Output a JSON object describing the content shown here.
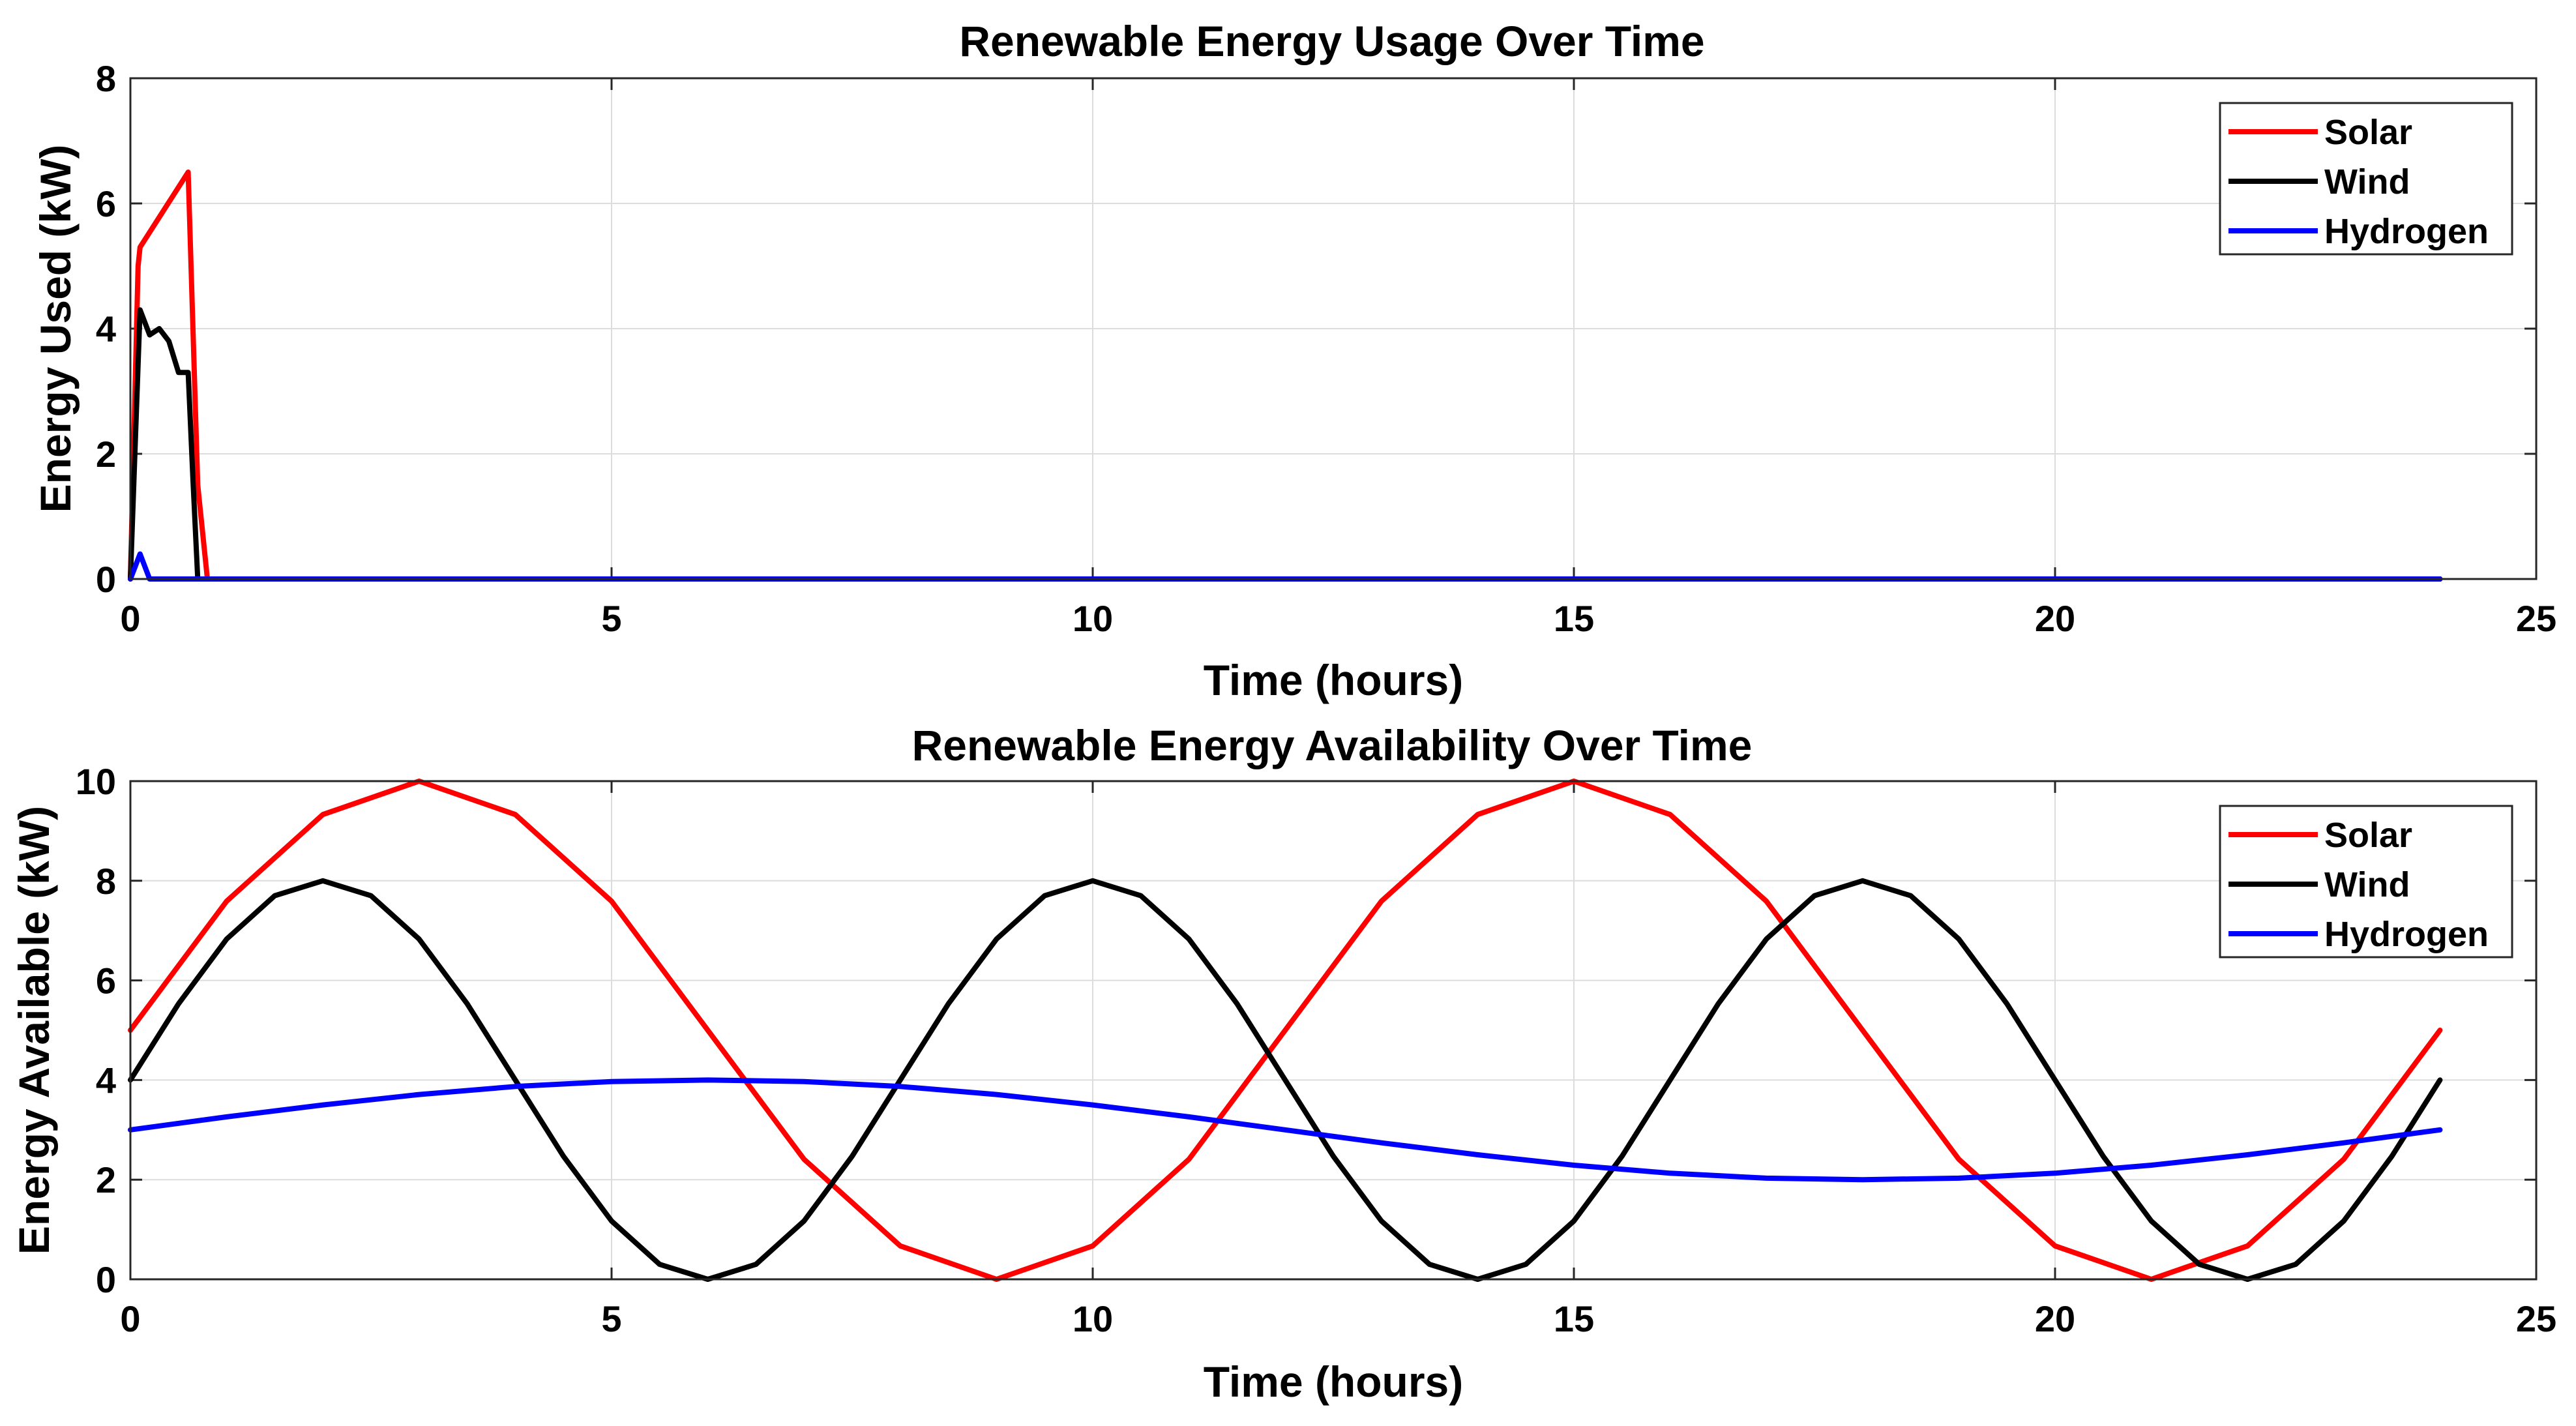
{
  "chart_data": [
    {
      "type": "line",
      "title": "Renewable Energy Usage Over Time",
      "xlabel": "Time (hours)",
      "ylabel": "Energy Used (kW)",
      "xlim": [
        0,
        25
      ],
      "ylim": [
        0,
        8
      ],
      "xticks": [
        0,
        5,
        10,
        15,
        20,
        25
      ],
      "yticks": [
        0,
        2,
        4,
        6,
        8
      ],
      "grid": true,
      "legend": "top-right",
      "series": [
        {
          "name": "Solar",
          "color": "#ff0000",
          "points": [
            [
              0,
              0
            ],
            [
              0.08,
              5.0
            ],
            [
              0.1,
              5.3
            ],
            [
              0.6,
              6.5
            ],
            [
              0.7,
              1.5
            ],
            [
              0.8,
              0
            ],
            [
              24,
              0
            ]
          ]
        },
        {
          "name": "Wind",
          "color": "#000000",
          "points": [
            [
              0,
              0
            ],
            [
              0.1,
              4.3
            ],
            [
              0.2,
              3.9
            ],
            [
              0.3,
              4.0
            ],
            [
              0.4,
              3.8
            ],
            [
              0.5,
              3.3
            ],
            [
              0.6,
              3.3
            ],
            [
              0.65,
              1.6
            ],
            [
              0.7,
              0
            ],
            [
              24,
              0
            ]
          ]
        },
        {
          "name": "Hydrogen",
          "color": "#0000ff",
          "points": [
            [
              0,
              0
            ],
            [
              0.1,
              0.4
            ],
            [
              0.2,
              0
            ],
            [
              24,
              0
            ]
          ]
        }
      ]
    },
    {
      "type": "line",
      "title": "Renewable Energy Availability Over Time",
      "xlabel": "Time (hours)",
      "ylabel": "Energy Available (kW)",
      "xlim": [
        0,
        25
      ],
      "ylim": [
        0,
        10
      ],
      "xticks": [
        0,
        5,
        10,
        15,
        20,
        25
      ],
      "yticks": [
        0,
        2,
        4,
        6,
        8,
        10
      ],
      "grid": true,
      "legend": "top-right",
      "series": [
        {
          "name": "Solar",
          "color": "#ff0000",
          "points": [
            [
              0,
              5.0
            ],
            [
              1,
              7.59
            ],
            [
              2,
              9.33
            ],
            [
              3,
              10.0
            ],
            [
              4,
              9.33
            ],
            [
              5,
              7.59
            ],
            [
              6,
              5.0
            ],
            [
              7,
              2.41
            ],
            [
              8,
              0.67
            ],
            [
              9,
              0.0
            ],
            [
              10,
              0.67
            ],
            [
              11,
              2.41
            ],
            [
              12,
              5.0
            ],
            [
              13,
              7.59
            ],
            [
              14,
              9.33
            ],
            [
              15,
              10.0
            ],
            [
              16,
              9.33
            ],
            [
              17,
              7.59
            ],
            [
              18,
              5.0
            ],
            [
              19,
              2.41
            ],
            [
              20,
              0.67
            ],
            [
              21,
              0.0
            ],
            [
              22,
              0.67
            ],
            [
              23,
              2.41
            ],
            [
              24,
              5.0
            ]
          ]
        },
        {
          "name": "Wind",
          "color": "#000000",
          "points": [
            [
              0,
              4.0
            ],
            [
              0.5,
              5.53
            ],
            [
              1,
              6.83
            ],
            [
              1.5,
              7.7
            ],
            [
              2,
              8.0
            ],
            [
              2.5,
              7.7
            ],
            [
              3,
              6.83
            ],
            [
              3.5,
              5.53
            ],
            [
              4,
              4.0
            ],
            [
              4.5,
              2.47
            ],
            [
              5,
              1.17
            ],
            [
              5.5,
              0.3
            ],
            [
              6,
              0.0
            ],
            [
              6.5,
              0.3
            ],
            [
              7,
              1.17
            ],
            [
              7.5,
              2.47
            ],
            [
              8,
              4.0
            ],
            [
              8.5,
              5.53
            ],
            [
              9,
              6.83
            ],
            [
              9.5,
              7.7
            ],
            [
              10,
              8.0
            ],
            [
              10.5,
              7.7
            ],
            [
              11,
              6.83
            ],
            [
              11.5,
              5.53
            ],
            [
              12,
              4.0
            ],
            [
              12.5,
              2.47
            ],
            [
              13,
              1.17
            ],
            [
              13.5,
              0.3
            ],
            [
              14,
              0.0
            ],
            [
              14.5,
              0.3
            ],
            [
              15,
              1.17
            ],
            [
              15.5,
              2.47
            ],
            [
              16,
              4.0
            ],
            [
              16.5,
              5.53
            ],
            [
              17,
              6.83
            ],
            [
              17.5,
              7.7
            ],
            [
              18,
              8.0
            ],
            [
              18.5,
              7.7
            ],
            [
              19,
              6.83
            ],
            [
              19.5,
              5.53
            ],
            [
              20,
              4.0
            ],
            [
              20.5,
              2.47
            ],
            [
              21,
              1.17
            ],
            [
              21.5,
              0.3
            ],
            [
              22,
              0.0
            ],
            [
              22.5,
              0.3
            ],
            [
              23,
              1.17
            ],
            [
              23.5,
              2.47
            ],
            [
              24,
              4.0
            ]
          ]
        },
        {
          "name": "Hydrogen",
          "color": "#0000ff",
          "points": [
            [
              0,
              3.0
            ],
            [
              1,
              3.26
            ],
            [
              2,
              3.5
            ],
            [
              3,
              3.71
            ],
            [
              4,
              3.87
            ],
            [
              5,
              3.97
            ],
            [
              6,
              4.0
            ],
            [
              7,
              3.97
            ],
            [
              8,
              3.87
            ],
            [
              9,
              3.71
            ],
            [
              10,
              3.5
            ],
            [
              11,
              3.26
            ],
            [
              12,
              3.0
            ],
            [
              13,
              2.74
            ],
            [
              14,
              2.5
            ],
            [
              15,
              2.29
            ],
            [
              16,
              2.13
            ],
            [
              17,
              2.03
            ],
            [
              18,
              2.0
            ],
            [
              19,
              2.03
            ],
            [
              20,
              2.13
            ],
            [
              21,
              2.29
            ],
            [
              22,
              2.5
            ],
            [
              23,
              2.74
            ],
            [
              24,
              3.0
            ]
          ]
        }
      ]
    }
  ]
}
